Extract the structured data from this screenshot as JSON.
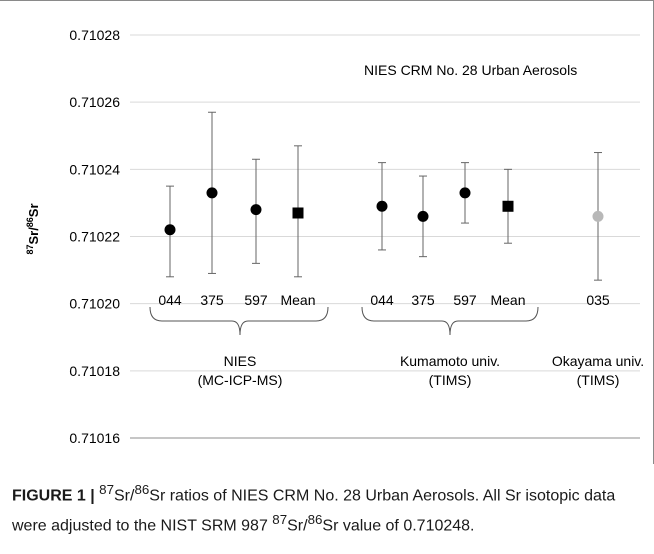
{
  "chart_data": {
    "type": "scatter",
    "title": "NIES CRM No. 28 Urban Aerosols",
    "ylabel_parts": {
      "pre": "87",
      "mid": "Sr/",
      "sup2": "86",
      "post": "Sr"
    },
    "ylim": [
      0.71016,
      0.71028
    ],
    "yticks": [
      "0.71016",
      "0.71018",
      "0.71020",
      "0.71022",
      "0.71024",
      "0.71026",
      "0.71028"
    ],
    "grid": true,
    "points": [
      {
        "label": "044",
        "group": 0,
        "value": 0.710222,
        "err_low": 0.710208,
        "err_high": 0.710235,
        "marker": "circle",
        "color": "#000000"
      },
      {
        "label": "375",
        "group": 0,
        "value": 0.710233,
        "err_low": 0.710209,
        "err_high": 0.710257,
        "marker": "circle",
        "color": "#000000"
      },
      {
        "label": "597",
        "group": 0,
        "value": 0.710228,
        "err_low": 0.710212,
        "err_high": 0.710243,
        "marker": "circle",
        "color": "#000000"
      },
      {
        "label": "Mean",
        "group": 0,
        "value": 0.710227,
        "err_low": 0.710208,
        "err_high": 0.710247,
        "marker": "square",
        "color": "#000000"
      },
      {
        "label": "044",
        "group": 1,
        "value": 0.710229,
        "err_low": 0.710216,
        "err_high": 0.710242,
        "marker": "circle",
        "color": "#000000"
      },
      {
        "label": "375",
        "group": 1,
        "value": 0.710226,
        "err_low": 0.710214,
        "err_high": 0.710238,
        "marker": "circle",
        "color": "#000000"
      },
      {
        "label": "597",
        "group": 1,
        "value": 0.710233,
        "err_low": 0.710224,
        "err_high": 0.710242,
        "marker": "circle",
        "color": "#000000"
      },
      {
        "label": "Mean",
        "group": 1,
        "value": 0.710229,
        "err_low": 0.710218,
        "err_high": 0.71024,
        "marker": "square",
        "color": "#000000"
      },
      {
        "label": "035",
        "group": 2,
        "value": 0.710226,
        "err_low": 0.710207,
        "err_high": 0.710245,
        "marker": "circle",
        "color": "#b8b8b8"
      }
    ],
    "groups": [
      {
        "name": "NIES",
        "method": "(MC-ICP-MS)",
        "bracket": true
      },
      {
        "name": "Kumamoto univ.",
        "method": "(TIMS)",
        "bracket": true
      },
      {
        "name": "Okayama univ.",
        "method": "(TIMS)",
        "bracket": false
      }
    ]
  },
  "caption": {
    "lead": "FIGURE 1 |",
    "r1_sup1": "87",
    "r1_mid": "Sr/",
    "r1_sup2": "86",
    "r1_text": "Sr ratios of NIES CRM No. 28 Urban Aerosols. All Sr isotopic data were adjusted to the NIST SRM 987 ",
    "r2_sup1": "87",
    "r2_mid": "Sr/",
    "r2_sup2": "86",
    "r2_text": "Sr value of 0.710248."
  }
}
